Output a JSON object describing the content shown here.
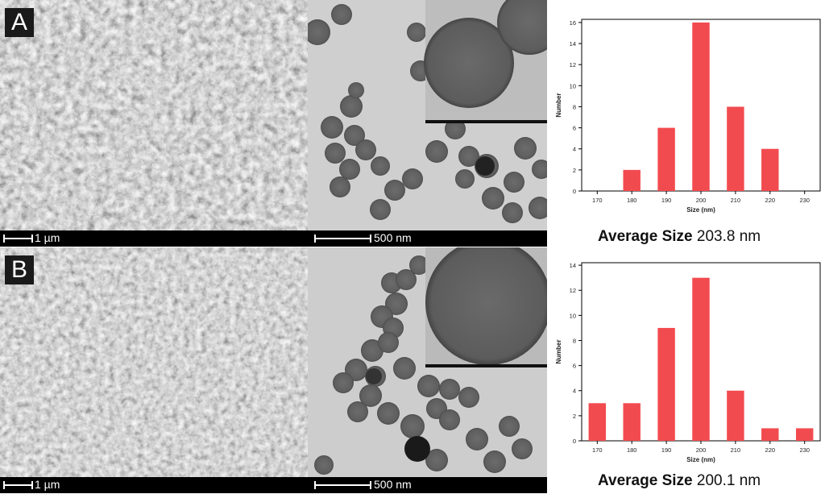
{
  "panels": [
    {
      "label": "A",
      "sem_scale": "1 µm",
      "tem_scale": "500 nm",
      "avg_prefix": "Average Size",
      "avg_value": "203.8 nm"
    },
    {
      "label": "B",
      "sem_scale": "1 µm",
      "tem_scale": "500 nm",
      "avg_prefix": "Average Size",
      "avg_value": "200.1 nm"
    }
  ],
  "chart_data": [
    {
      "type": "bar",
      "categories": [
        "170",
        "180",
        "190",
        "200",
        "210",
        "220",
        "230"
      ],
      "values": [
        0,
        2,
        6,
        16,
        8,
        4,
        0
      ],
      "xlabel": "Size (nm)",
      "ylabel": "Number",
      "yticks": [
        "0",
        "2",
        "4",
        "6",
        "8",
        "10",
        "12",
        "14",
        "16"
      ],
      "ylim": [
        0,
        16.3
      ],
      "color": "#f24b4f"
    },
    {
      "type": "bar",
      "categories": [
        "170",
        "180",
        "190",
        "200",
        "210",
        "220",
        "230"
      ],
      "values": [
        3,
        3,
        9,
        13,
        4,
        1,
        1
      ],
      "xlabel": "Size (nm)",
      "ylabel": "Number",
      "yticks": [
        "0",
        "2",
        "4",
        "6",
        "8",
        "10",
        "12",
        "14"
      ],
      "ylim": [
        0,
        14.2
      ],
      "color": "#f24b4f"
    }
  ]
}
